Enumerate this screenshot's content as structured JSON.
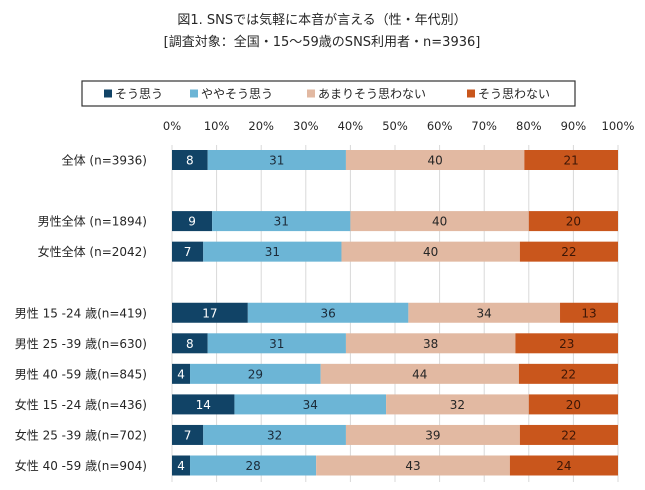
{
  "chart_data": {
    "type": "bar",
    "orientation": "horizontal",
    "stacked": "100%",
    "title": "図1. SNSでは気軽に本音が言える（性・年代別）",
    "subtitle": "[調査対象：全国・15～59歳のSNS利用者・n=3936]",
    "xlabel": "",
    "ylabel": "",
    "xlim": [
      0,
      100
    ],
    "unit": "%",
    "grid": true,
    "legend_position": "top",
    "xticks": [
      "0%",
      "10%",
      "20%",
      "30%",
      "40%",
      "50%",
      "60%",
      "70%",
      "80%",
      "90%",
      "100%"
    ],
    "categories": [
      "全体 (n=3936)",
      "男性全体 (n=1894)",
      "女性全体 (n=2042)",
      "男性 15 -24 歳(n=419)",
      "男性 25 -39 歳(n=630)",
      "男性 40 -59 歳(n=845)",
      "女性 15 -24 歳(n=436)",
      "女性 25 -39 歳(n=702)",
      "女性 40 -59 歳(n=904)"
    ],
    "series": [
      {
        "name": "そう思う",
        "color": "#114366",
        "label_color": "#ffffff",
        "values": [
          8,
          9,
          7,
          17,
          8,
          4,
          14,
          7,
          4
        ]
      },
      {
        "name": "ややそう思う",
        "color": "#6cb5d6",
        "label_color": "#1b2a38",
        "values": [
          31,
          31,
          31,
          36,
          31,
          29,
          34,
          32,
          28
        ]
      },
      {
        "name": "あまりそう思わない",
        "color": "#e2b9a2",
        "label_color": "#262626",
        "values": [
          40,
          40,
          40,
          34,
          38,
          44,
          32,
          39,
          43
        ]
      },
      {
        "name": "そう思わない",
        "color": "#c9561c",
        "label_color": "#3d1606",
        "values": [
          21,
          20,
          22,
          13,
          23,
          22,
          20,
          22,
          24
        ]
      }
    ]
  }
}
